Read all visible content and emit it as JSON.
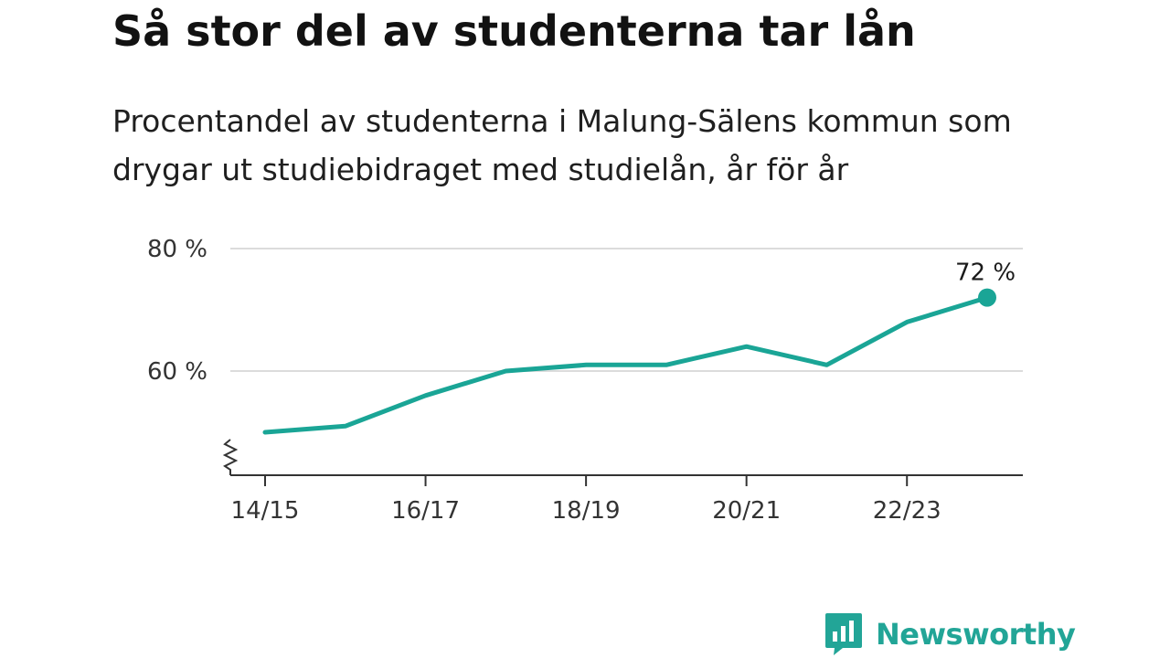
{
  "title": "Så stor del av studenterna tar lån",
  "subtitle": "Procentandel av studenterna i Malung-Sälens kommun som drygar ut studiebidraget med studielån, år för år",
  "brand": {
    "name": "Newsworthy",
    "color": "#22a597",
    "icon": "bar-chart-speech-bubble-icon"
  },
  "chart_data": {
    "type": "line",
    "x": [
      "14/15",
      "15/16",
      "16/17",
      "17/18",
      "18/19",
      "19/20",
      "20/21",
      "21/22",
      "22/23",
      "23/24"
    ],
    "x_tick_labels": [
      "14/15",
      "16/17",
      "18/19",
      "20/21",
      "22/23"
    ],
    "series": [
      {
        "values": [
          50,
          51,
          56,
          60,
          61,
          61,
          64,
          61,
          68,
          72
        ],
        "color": "#1aa596"
      }
    ],
    "y_ticks": [
      60,
      80
    ],
    "y_tick_labels": [
      "60 %",
      "80 %"
    ],
    "ylim": [
      44,
      80
    ],
    "y_axis_break": true,
    "grid": true,
    "annotations": [
      {
        "x": "23/24",
        "value": 72,
        "label": "72 %"
      }
    ]
  }
}
